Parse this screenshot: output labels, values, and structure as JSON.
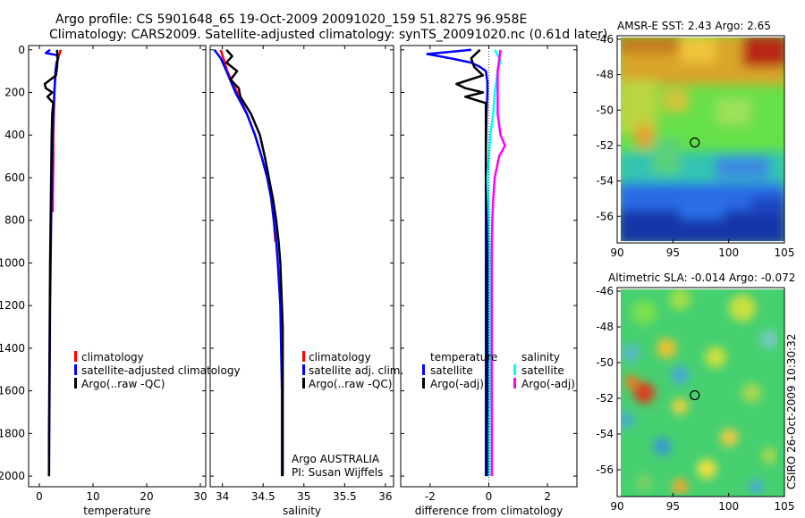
{
  "header": {
    "line1": "Argo profile: CS 5901648_65 19-Oct-2009 20091020_159 51.827S 96.958E",
    "line2": "Climatology: CARS2009. Satellite-adjusted climatology: synTS_20091020.nc (0.61d later)"
  },
  "side_label": "CSIRO 26-Oct-2009 10:30:32",
  "colors": {
    "climatology": "#ff0000",
    "satellite": "#0000ff",
    "argo": "#000000",
    "cyan": "#00ffff",
    "magenta": "#ff00ff"
  },
  "panels": {
    "temperature": {
      "legend": [
        "climatology",
        "satellite-adjusted climatology",
        "Argo(..raw -QC)"
      ]
    },
    "salinity": {
      "legend": [
        "climatology",
        "satellite adj. clim.",
        "Argo(..raw -QC)"
      ],
      "note1": "Argo AUSTRALIA",
      "note2": "PI: Susan Wijffels"
    },
    "difference": {
      "legend_temp_title": "temperature",
      "legend_sal_title": "salinity",
      "legend_temp": [
        "satellite",
        "Argo(-adj)"
      ],
      "legend_sal": [
        "satellite",
        "Argo(-adj)"
      ]
    }
  },
  "chart_data": [
    {
      "type": "line",
      "id": "temperature",
      "title": "",
      "xlabel": "temperature",
      "ylabel": "",
      "xlim": [
        -2,
        31
      ],
      "ylim": [
        2050,
        -20
      ],
      "xticks": [
        0,
        10,
        20,
        30
      ],
      "yticks": [
        0,
        200,
        400,
        600,
        800,
        1000,
        1200,
        1400,
        1600,
        1800,
        2000
      ],
      "series": [
        {
          "name": "climatology",
          "color": "red",
          "depth": [
            0,
            30,
            60,
            100,
            150,
            200,
            300,
            400,
            500,
            700,
            760
          ],
          "values": [
            4.0,
            3.6,
            3.3,
            3.1,
            2.9,
            2.8,
            2.7,
            2.6,
            2.6,
            2.5,
            2.5
          ]
        },
        {
          "name": "satellite-adjusted climatology",
          "color": "blue",
          "depth": [
            0,
            15,
            25,
            40,
            60,
            100,
            200,
            300,
            500,
            800,
            1200,
            1600,
            2000
          ],
          "values": [
            2.0,
            1.2,
            3.2,
            3.5,
            3.2,
            3.0,
            2.8,
            2.6,
            2.4,
            2.2,
            2.0,
            1.9,
            1.8
          ]
        },
        {
          "name": "Argo(..raw -QC)",
          "color": "black",
          "depth": [
            0,
            40,
            80,
            120,
            160,
            180,
            200,
            220,
            250,
            300,
            400,
            600,
            800,
            1000,
            1400,
            1800,
            2000
          ],
          "values": [
            3.3,
            3.4,
            3.3,
            3.1,
            1.0,
            1.2,
            2.4,
            1.5,
            2.6,
            2.4,
            2.3,
            2.2,
            2.1,
            2.0,
            1.9,
            1.8,
            1.8
          ]
        }
      ]
    },
    {
      "type": "line",
      "id": "salinity",
      "title": "",
      "xlabel": "salinity",
      "ylabel": "",
      "xlim": [
        33.85,
        36.1
      ],
      "ylim": [
        2050,
        -20
      ],
      "xticks": [
        34,
        34.5,
        35,
        35.5,
        36
      ],
      "xtick_labels": [
        "34",
        "34.5",
        "35",
        "35.5",
        "36"
      ],
      "yticks": [
        0,
        200,
        400,
        600,
        800,
        1000,
        1200,
        1400,
        1600,
        1800,
        2000
      ],
      "series": [
        {
          "name": "climatology",
          "color": "red",
          "depth": [
            0,
            100,
            200,
            300,
            400,
            500,
            600,
            700,
            800,
            900
          ],
          "values": [
            33.98,
            34.06,
            34.18,
            34.3,
            34.4,
            34.48,
            34.55,
            34.6,
            34.63,
            34.65
          ]
        },
        {
          "name": "satellite adj. clim.",
          "color": "blue",
          "depth": [
            0,
            40,
            100,
            200,
            300,
            400,
            500,
            600,
            700,
            800,
            900,
            1000,
            1200,
            1400,
            1600,
            1800,
            2000
          ],
          "values": [
            33.9,
            33.98,
            34.05,
            34.16,
            34.3,
            34.4,
            34.48,
            34.55,
            34.6,
            34.63,
            34.66,
            34.68,
            34.71,
            34.72,
            34.73,
            34.73,
            34.73
          ]
        },
        {
          "name": "Argo(..raw -QC)",
          "color": "black",
          "depth": [
            0,
            30,
            60,
            100,
            140,
            180,
            220,
            300,
            400,
            500,
            600,
            700,
            800,
            900,
            1000,
            1100,
            1200,
            1300,
            1400,
            1500,
            1600,
            1800,
            2000
          ],
          "values": [
            34.05,
            34.12,
            34.05,
            34.18,
            34.1,
            34.2,
            34.22,
            34.35,
            34.46,
            34.52,
            34.57,
            34.62,
            34.66,
            34.69,
            34.71,
            34.72,
            34.73,
            34.74,
            34.74,
            34.74,
            34.74,
            34.74,
            34.74
          ]
        }
      ]
    },
    {
      "type": "line",
      "id": "difference",
      "title": "",
      "xlabel": "difference from climatology",
      "ylabel": "",
      "xlim": [
        -3.0,
        3.0
      ],
      "ylim": [
        2050,
        -20
      ],
      "xticks": [
        -2,
        0,
        2
      ],
      "yticks": [
        0,
        200,
        400,
        600,
        800,
        1000,
        1200,
        1400,
        1600,
        1800,
        2000
      ],
      "series": [
        {
          "name": "temperature satellite",
          "color": "blue",
          "depth": [
            0,
            20,
            40,
            60,
            80,
            100,
            150,
            200,
            300,
            500,
            800,
            1200,
            1600,
            2000
          ],
          "values": [
            -0.6,
            -2.1,
            -1.3,
            -0.6,
            -0.3,
            -0.1,
            -0.05,
            -0.05,
            -0.08,
            -0.1,
            -0.1,
            -0.1,
            -0.1,
            -0.1
          ]
        },
        {
          "name": "temperature Argo(-adj)",
          "color": "black",
          "depth": [
            0,
            40,
            80,
            120,
            160,
            180,
            200,
            220,
            250,
            300,
            400,
            600,
            800,
            1000,
            1400,
            1800,
            2000
          ],
          "values": [
            -0.3,
            -0.6,
            -0.5,
            -0.2,
            -1.1,
            -0.8,
            -0.2,
            -0.8,
            -0.1,
            -0.1,
            -0.1,
            -0.1,
            -0.05,
            -0.05,
            -0.05,
            -0.05,
            -0.05
          ]
        },
        {
          "name": "salinity satellite",
          "color": "cyan",
          "depth": [
            0,
            50,
            100,
            200,
            300,
            400,
            500,
            600,
            800,
            1000,
            1200,
            1400,
            1600,
            1800,
            2000
          ],
          "values": [
            0.2,
            0.4,
            0.3,
            0.2,
            0.15,
            0.05,
            0.0,
            -0.05,
            0.0,
            0.02,
            0.02,
            0.02,
            0.02,
            0.01,
            0.01
          ]
        },
        {
          "name": "salinity Argo(-adj)",
          "color": "magenta",
          "depth": [
            0,
            100,
            200,
            300,
            400,
            450,
            500,
            600,
            700,
            800,
            900,
            1000,
            1200,
            1400,
            1600,
            1800,
            2000
          ],
          "values": [
            0.4,
            0.3,
            0.3,
            0.3,
            0.4,
            0.55,
            0.35,
            0.2,
            0.15,
            0.12,
            0.1,
            0.1,
            0.1,
            0.1,
            0.1,
            0.1,
            0.1
          ]
        }
      ]
    },
    {
      "type": "heatmap",
      "id": "sst_map",
      "title": "AMSR-E SST: 2.43 Argo: 2.65",
      "xlabel": "",
      "ylabel": "",
      "xlim": [
        90,
        105
      ],
      "ylim": [
        -57.5,
        -45.8
      ],
      "xticks": [
        90,
        95,
        100,
        105
      ],
      "yticks": [
        -46,
        -48,
        -50,
        -52,
        -54,
        -56
      ],
      "marker": {
        "lon": 96.958,
        "lat": -51.827
      }
    },
    {
      "type": "heatmap",
      "id": "sla_map",
      "title": "Altimetric SLA: -0.014 Argo: -0.072",
      "xlabel": "",
      "ylabel": "",
      "xlim": [
        90,
        105
      ],
      "ylim": [
        -57.5,
        -45.8
      ],
      "xticks": [
        90,
        95,
        100,
        105
      ],
      "yticks": [
        -46,
        -48,
        -50,
        -52,
        -54,
        -56
      ],
      "marker": {
        "lon": 96.958,
        "lat": -51.827
      }
    }
  ]
}
